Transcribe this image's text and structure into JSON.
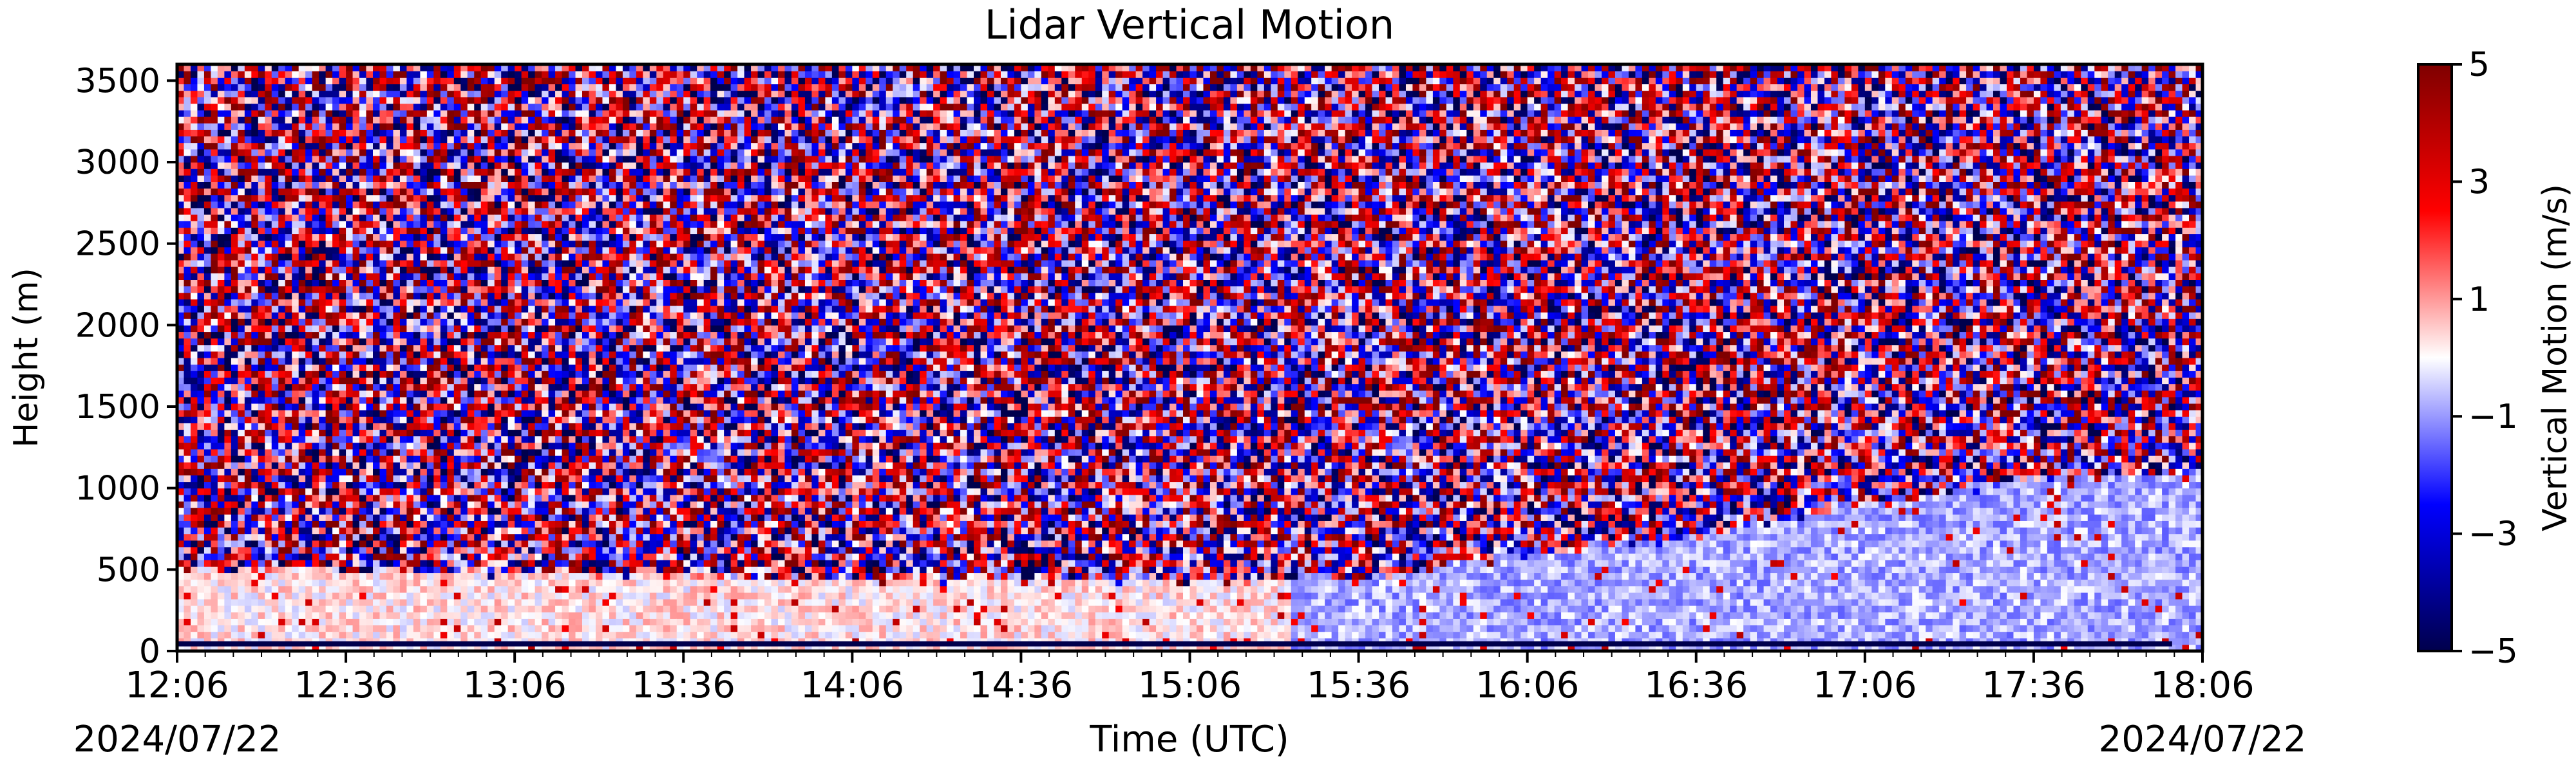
{
  "chart_data": {
    "type": "heatmap",
    "title": "Lidar Vertical Motion",
    "xlabel": "Time (UTC)",
    "ylabel": "Height (m)",
    "x_ticks": [
      "12:06",
      "12:36",
      "13:06",
      "13:36",
      "14:06",
      "14:36",
      "15:06",
      "15:36",
      "16:06",
      "16:36",
      "17:06",
      "17:36",
      "18:06"
    ],
    "x_tick_minutes_from_start": [
      0,
      30,
      60,
      90,
      120,
      150,
      180,
      210,
      240,
      270,
      300,
      330,
      360
    ],
    "date_left": "2024/07/22",
    "date_right": "2024/07/22",
    "y_ticks": [
      0,
      500,
      1000,
      1500,
      2000,
      2500,
      3000,
      3500
    ],
    "ylim": [
      0,
      3600
    ],
    "colorbar": {
      "label": "Vertical Motion (m/s)",
      "ticks": [
        5,
        3,
        1,
        -1,
        -3,
        -5
      ],
      "tick_labels": [
        "5",
        "3",
        "1",
        "−1",
        "−3",
        "−5"
      ],
      "range": [
        -5,
        5
      ],
      "colormap": "seismic"
    },
    "boundary_layer_top_m": {
      "x_minutes": [
        0,
        30,
        60,
        90,
        120,
        150,
        180,
        210,
        240,
        270,
        300,
        330,
        360
      ],
      "height": [
        500,
        500,
        480,
        470,
        450,
        440,
        430,
        450,
        600,
        700,
        920,
        1050,
        1100
      ]
    },
    "colors": {
      "negative_max": "#00004c",
      "negative_mid": "#0000ff",
      "zero": "#ffffff",
      "positive_mid": "#ff0000",
      "positive_max": "#7f0000"
    }
  }
}
